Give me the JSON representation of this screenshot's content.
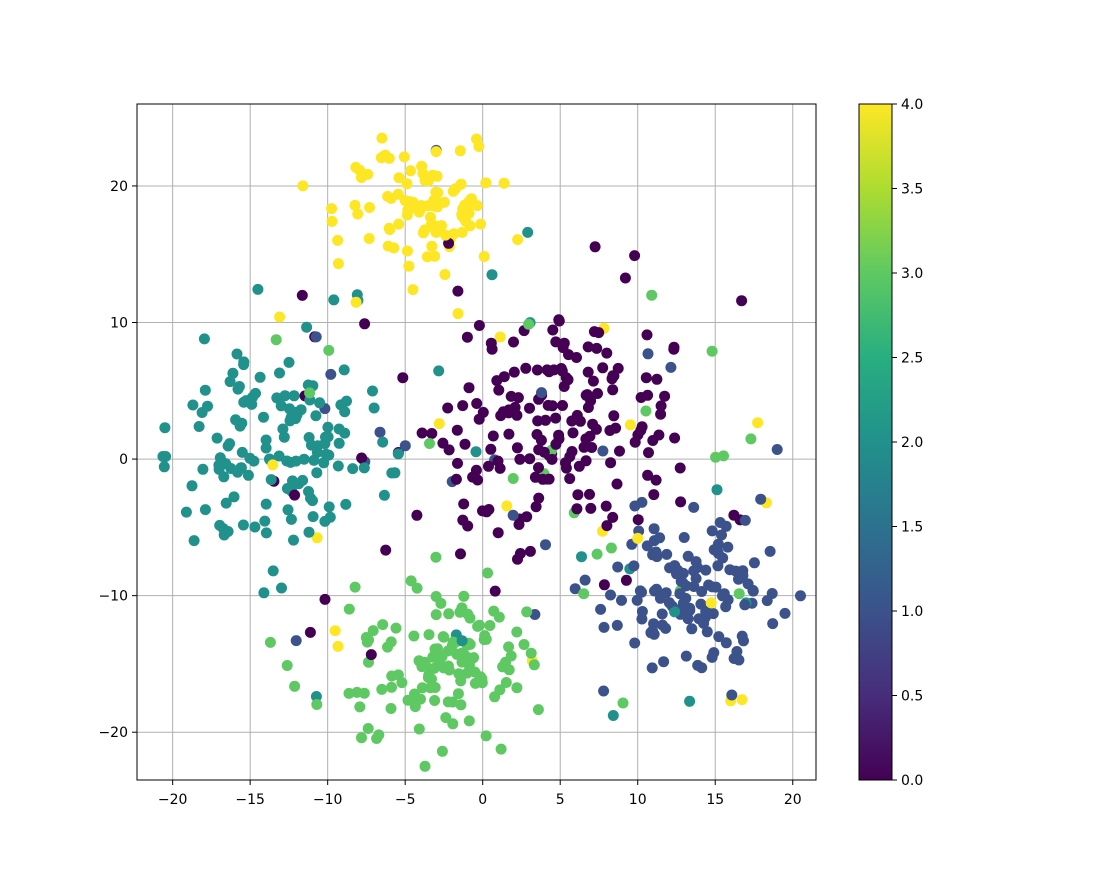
{
  "chart_data": {
    "type": "scatter",
    "title": "",
    "xlabel": "",
    "ylabel": "",
    "xlim": [
      -22.3,
      21.5
    ],
    "ylim": [
      -23.5,
      26
    ],
    "grid": true,
    "colormap": "viridis",
    "colorbar": {
      "min": 0.0,
      "max": 4.0,
      "ticks": [
        "0.0",
        "0.5",
        "1.0",
        "1.5",
        "2.0",
        "2.5",
        "3.0",
        "3.5",
        "4.0"
      ]
    },
    "xticks": [
      "−20",
      "−15",
      "−10",
      "−5",
      "0",
      "5",
      "10",
      "15",
      "20"
    ],
    "yticks": [
      "−20",
      "−10",
      "0",
      "10",
      "20"
    ],
    "clusters": [
      {
        "value": 0,
        "color": "#440154",
        "count": 200,
        "points_sample": [
          [
            4.2,
            0.4
          ],
          [
            3.5,
            1.8
          ],
          [
            6.1,
            3.2
          ],
          [
            8.4,
            6.1
          ],
          [
            2.3,
            4.5
          ],
          [
            10.2,
            2.1
          ],
          [
            16.7,
            11.6
          ],
          [
            9.8,
            14.9
          ],
          [
            -1.6,
            12.3
          ],
          [
            -2.2,
            15.8
          ]
        ]
      },
      {
        "value": 1,
        "color": "#3b528b",
        "count": 150,
        "points_sample": [
          [
            13.1,
            -10.2
          ],
          [
            12.5,
            -8.4
          ],
          [
            14.6,
            -11.3
          ],
          [
            15.2,
            -6.9
          ],
          [
            11.8,
            -12.4
          ],
          [
            16.5,
            -8.8
          ],
          [
            19.5,
            -11.3
          ],
          [
            19.0,
            0.7
          ],
          [
            -3.0,
            22.6
          ],
          [
            -9.8,
            6.2
          ]
        ]
      },
      {
        "value": 2,
        "color": "#21918c",
        "count": 160,
        "points_sample": [
          [
            -12.8,
            1.6
          ],
          [
            -14.9,
            4.0
          ],
          [
            -10.7,
            -1.0
          ],
          [
            -16.7,
            -1.3
          ],
          [
            -13.0,
            3.9
          ],
          [
            -9.9,
            -3.5
          ],
          [
            -20.5,
            2.3
          ],
          [
            -8.9,
            1.9
          ],
          [
            0.6,
            13.5
          ],
          [
            2.9,
            16.6
          ]
        ]
      },
      {
        "value": 3,
        "color": "#5ec962",
        "count": 150,
        "points_sample": [
          [
            -2.8,
            -14.9
          ],
          [
            -3.5,
            -16.0
          ],
          [
            -1.9,
            -13.4
          ],
          [
            -4.4,
            -17.2
          ],
          [
            -0.5,
            -15.6
          ],
          [
            1.1,
            -16.9
          ],
          [
            -2.6,
            -21.4
          ],
          [
            -6.7,
            -20.2
          ],
          [
            10.9,
            12.0
          ],
          [
            14.8,
            7.9
          ]
        ]
      },
      {
        "value": 4,
        "color": "#fde725",
        "count": 120,
        "points_sample": [
          [
            -3.3,
            17.0
          ],
          [
            -4.5,
            18.8
          ],
          [
            -1.9,
            19.6
          ],
          [
            -5.4,
            20.6
          ],
          [
            -2.4,
            16.4
          ],
          [
            -6.5,
            23.5
          ],
          [
            -11.6,
            20.0
          ],
          [
            -13.1,
            10.4
          ],
          [
            16.0,
            -17.7
          ],
          [
            18.3,
            -3.2
          ]
        ]
      }
    ]
  }
}
